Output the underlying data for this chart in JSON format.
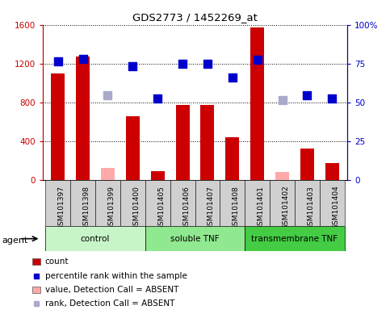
{
  "title": "GDS2773 / 1452269_at",
  "samples": [
    "GSM101397",
    "GSM101398",
    "GSM101399",
    "GSM101400",
    "GSM101405",
    "GSM101406",
    "GSM101407",
    "GSM101408",
    "GSM101401",
    "GSM101402",
    "GSM101403",
    "GSM101404"
  ],
  "groups": [
    {
      "name": "control",
      "indices": [
        0,
        1,
        2,
        3
      ],
      "color": "#c8f5c8"
    },
    {
      "name": "soluble TNF",
      "indices": [
        4,
        5,
        6,
        7
      ],
      "color": "#90e890"
    },
    {
      "name": "transmembrane TNF",
      "indices": [
        8,
        9,
        10,
        11
      ],
      "color": "#44cc44"
    }
  ],
  "count_values": [
    1100,
    1270,
    null,
    660,
    90,
    770,
    775,
    440,
    1570,
    null,
    320,
    175
  ],
  "count_absent_values": [
    null,
    null,
    120,
    null,
    null,
    null,
    null,
    null,
    null,
    85,
    null,
    null
  ],
  "rank_values": [
    1220,
    1250,
    null,
    1170,
    840,
    1195,
    1195,
    1060,
    1240,
    null,
    875,
    840
  ],
  "rank_absent_values": [
    null,
    null,
    870,
    null,
    null,
    null,
    null,
    null,
    null,
    825,
    null,
    null
  ],
  "ylim_left": [
    0,
    1600
  ],
  "ylim_right": [
    0,
    100
  ],
  "yticks_left": [
    0,
    400,
    800,
    1200,
    1600
  ],
  "yticks_right": [
    0,
    25,
    50,
    75,
    100
  ],
  "bar_color": "#cc0000",
  "bar_absent_color": "#ffaaaa",
  "dot_color": "#0000cc",
  "dot_absent_color": "#aaaacc",
  "bar_width": 0.55,
  "dot_size": 45,
  "background_color": "#ffffff",
  "xlabel_color": "#cc0000",
  "ylabel_right_color": "#0000cc",
  "legend_items": [
    {
      "label": "count",
      "color": "#cc0000",
      "type": "bar"
    },
    {
      "label": "percentile rank within the sample",
      "color": "#0000cc",
      "type": "dot"
    },
    {
      "label": "value, Detection Call = ABSENT",
      "color": "#ffaaaa",
      "type": "bar"
    },
    {
      "label": "rank, Detection Call = ABSENT",
      "color": "#aaaacc",
      "type": "dot"
    }
  ]
}
